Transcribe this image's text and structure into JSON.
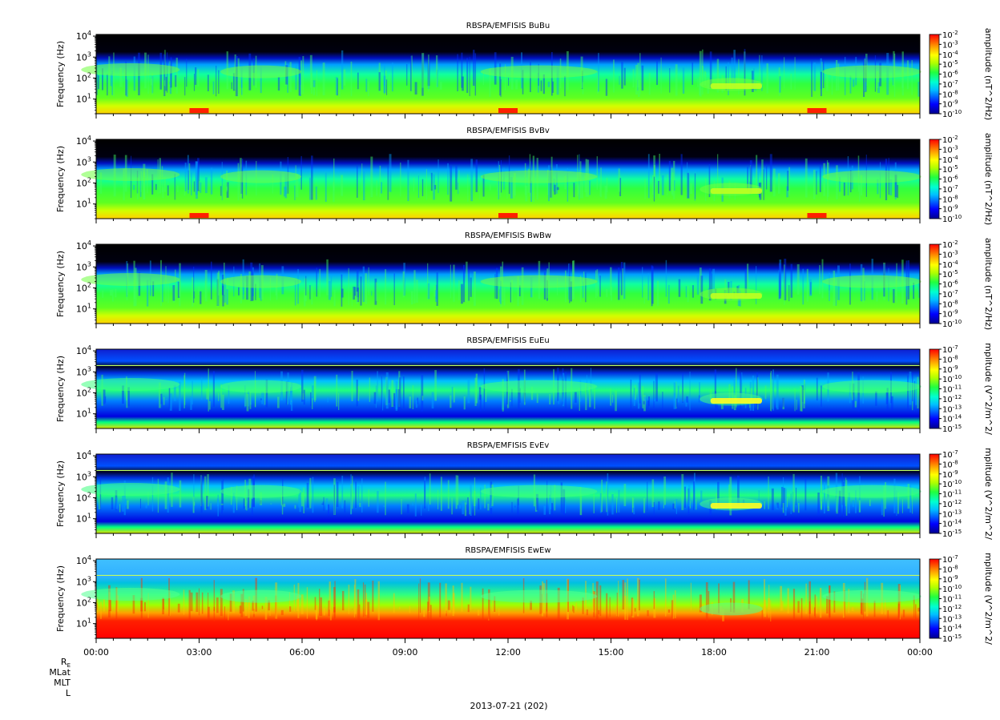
{
  "chart_data": [
    {
      "type": "heatmap",
      "title": "RBSPA/EMFISIS  BuBu",
      "ylabel": "Frequency (Hz)",
      "yscale": "log",
      "ylim": [
        2,
        12000
      ],
      "yticks": [
        "10^1",
        "10^2",
        "10^3",
        "10^4"
      ],
      "colorbar": {
        "label": "amplitude (nT^2/Hz)",
        "scale": "log",
        "min_exp": -10,
        "max_exp": -2,
        "ticks": [
          "10^-2",
          "10^-3",
          "10^-4",
          "10^-5",
          "10^-6",
          "10^-7",
          "10^-8",
          "10^-9",
          "10^-10"
        ]
      }
    },
    {
      "type": "heatmap",
      "title": "RBSPA/EMFISIS  BvBv",
      "ylabel": "Frequency (Hz)",
      "yscale": "log",
      "ylim": [
        2,
        12000
      ],
      "yticks": [
        "10^1",
        "10^2",
        "10^3",
        "10^4"
      ],
      "colorbar": {
        "label": "amplitude (nT^2/Hz)",
        "scale": "log",
        "min_exp": -10,
        "max_exp": -2,
        "ticks": [
          "10^-2",
          "10^-3",
          "10^-4",
          "10^-5",
          "10^-6",
          "10^-7",
          "10^-8",
          "10^-9",
          "10^-10"
        ]
      }
    },
    {
      "type": "heatmap",
      "title": "RBSPA/EMFISIS  BwBw",
      "ylabel": "Frequency (Hz)",
      "yscale": "log",
      "ylim": [
        2,
        12000
      ],
      "yticks": [
        "10^1",
        "10^2",
        "10^3",
        "10^4"
      ],
      "colorbar": {
        "label": "amplitude (nT^2/Hz)",
        "scale": "log",
        "min_exp": -10,
        "max_exp": -2,
        "ticks": [
          "10^-2",
          "10^-3",
          "10^-4",
          "10^-5",
          "10^-6",
          "10^-7",
          "10^-8",
          "10^-9",
          "10^-10"
        ]
      }
    },
    {
      "type": "heatmap",
      "title": "RBSPA/EMFISIS  EuEu",
      "ylabel": "Frequency (Hz)",
      "yscale": "log",
      "ylim": [
        2,
        12000
      ],
      "yticks": [
        "10^1",
        "10^2",
        "10^3",
        "10^4"
      ],
      "colorbar": {
        "label": "mplitude (V^2/m^2/",
        "scale": "log",
        "min_exp": -15,
        "max_exp": -7,
        "ticks": [
          "10^-7",
          "10^-8",
          "10^-9",
          "10^-10",
          "10^-11",
          "10^-12",
          "10^-13",
          "10^-14",
          "10^-15"
        ]
      }
    },
    {
      "type": "heatmap",
      "title": "RBSPA/EMFISIS  EvEv",
      "ylabel": "Frequency (Hz)",
      "yscale": "log",
      "ylim": [
        2,
        12000
      ],
      "yticks": [
        "10^1",
        "10^2",
        "10^3",
        "10^4"
      ],
      "colorbar": {
        "label": "mplitude (V^2/m^2/",
        "scale": "log",
        "min_exp": -15,
        "max_exp": -7,
        "ticks": [
          "10^-7",
          "10^-8",
          "10^-9",
          "10^-10",
          "10^-11",
          "10^-12",
          "10^-13",
          "10^-14",
          "10^-15"
        ]
      }
    },
    {
      "type": "heatmap",
      "title": "RBSPA/EMFISIS  EwEw",
      "ylabel": "Frequency (Hz)",
      "yscale": "log",
      "ylim": [
        2,
        12000
      ],
      "yticks": [
        "10^1",
        "10^2",
        "10^3",
        "10^4"
      ],
      "colorbar": {
        "label": "mplitude (V^2/m^2/",
        "scale": "log",
        "min_exp": -15,
        "max_exp": -7,
        "ticks": [
          "10^-7",
          "10^-8",
          "10^-9",
          "10^-10",
          "10^-11",
          "10^-12",
          "10^-13",
          "10^-14",
          "10^-15"
        ]
      }
    }
  ],
  "x_axis": {
    "ticks": [
      "00:00",
      "03:00",
      "06:00",
      "09:00",
      "12:00",
      "15:00",
      "18:00",
      "21:00",
      "00:00"
    ],
    "xlim_hours": [
      0,
      24
    ]
  },
  "ephemeris_labels": [
    "R",
    "MLat",
    "MLT",
    "L"
  ],
  "ephemeris_subscript": "E",
  "date_label": "2013-07-21 (202)"
}
